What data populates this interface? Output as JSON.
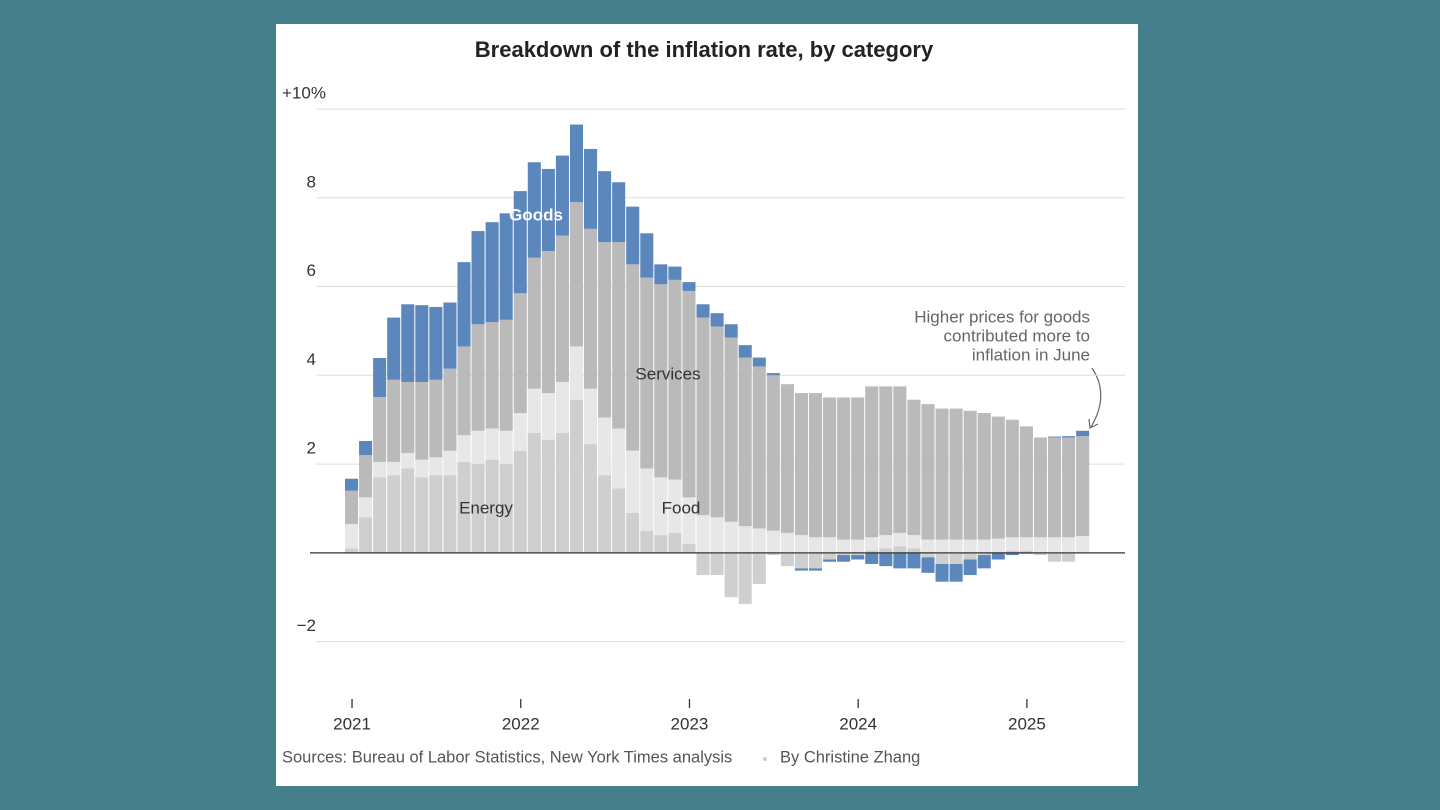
{
  "chart_data": {
    "type": "stacked-bar",
    "title": "Breakdown of the inflation rate, by category",
    "categories": [
      "2021",
      null,
      null,
      null,
      null,
      null,
      null,
      null,
      null,
      null,
      null,
      null,
      "2022",
      null,
      null,
      null,
      null,
      null,
      null,
      null,
      null,
      null,
      null,
      null,
      "2023",
      null,
      null,
      null,
      null,
      null,
      null,
      null,
      null,
      null,
      null,
      null,
      "2024",
      null,
      null,
      null,
      null,
      null,
      null,
      null,
      null,
      null,
      null,
      null,
      "2025",
      null,
      null,
      null,
      null
    ],
    "series": [
      {
        "name": "Energy",
        "color": "#cfcfcf",
        "values": [
          0.1,
          0.8,
          1.7,
          1.75,
          1.9,
          1.7,
          1.75,
          1.75,
          2.05,
          2.0,
          2.1,
          2.0,
          2.3,
          2.7,
          2.55,
          2.7,
          3.45,
          2.45,
          1.75,
          1.45,
          0.9,
          0.5,
          0.4,
          0.45,
          0.2,
          -0.5,
          -0.5,
          -1.0,
          -1.15,
          -0.7,
          -0.05,
          -0.3,
          -0.35,
          -0.35,
          -0.15,
          -0.05,
          -0.05,
          0.05,
          0.1,
          0.15,
          0.1,
          -0.1,
          -0.25,
          -0.25,
          -0.15,
          -0.05,
          0.02,
          0.05,
          0.05,
          -0.05,
          -0.2,
          -0.2,
          0
        ]
      },
      {
        "name": "Food",
        "color": "#e7e7e7",
        "values": [
          0.55,
          0.45,
          0.35,
          0.3,
          0.35,
          0.4,
          0.4,
          0.55,
          0.6,
          0.75,
          0.7,
          0.75,
          0.85,
          1.0,
          1.05,
          1.15,
          1.2,
          1.25,
          1.3,
          1.35,
          1.4,
          1.4,
          1.3,
          1.2,
          1.05,
          0.85,
          0.8,
          0.7,
          0.6,
          0.55,
          0.5,
          0.45,
          0.4,
          0.35,
          0.35,
          0.3,
          0.3,
          0.3,
          0.3,
          0.3,
          0.3,
          0.3,
          0.3,
          0.3,
          0.3,
          0.3,
          0.3,
          0.3,
          0.3,
          0.35,
          0.35,
          0.35,
          0.38
        ]
      },
      {
        "name": "Services",
        "color": "#bababa",
        "values": [
          0.75,
          0.95,
          1.46,
          1.85,
          1.6,
          1.75,
          1.75,
          1.85,
          2.0,
          2.4,
          2.4,
          2.5,
          2.7,
          2.95,
          3.2,
          3.3,
          3.25,
          3.6,
          3.95,
          4.2,
          4.2,
          4.3,
          4.35,
          4.5,
          4.65,
          4.45,
          4.3,
          4.15,
          3.8,
          3.65,
          3.5,
          3.35,
          3.2,
          3.25,
          3.15,
          3.2,
          3.2,
          3.4,
          3.35,
          3.3,
          3.05,
          3.05,
          2.95,
          2.95,
          2.9,
          2.85,
          2.75,
          2.65,
          2.5,
          2.25,
          2.25,
          2.25,
          2.25
        ]
      },
      {
        "name": "Goods",
        "color": "#5b87bd",
        "values": [
          0.27,
          0.32,
          0.88,
          1.4,
          1.75,
          1.73,
          1.64,
          1.49,
          1.9,
          2.1,
          2.25,
          2.4,
          2.3,
          2.15,
          1.85,
          1.8,
          1.75,
          1.8,
          1.6,
          1.35,
          1.3,
          1.0,
          0.45,
          0.3,
          0.2,
          0.3,
          0.3,
          0.3,
          0.28,
          0.2,
          0.05,
          0,
          -0.05,
          -0.05,
          -0.05,
          -0.15,
          -0.1,
          -0.25,
          -0.3,
          -0.35,
          -0.35,
          -0.35,
          -0.4,
          -0.4,
          -0.35,
          -0.3,
          -0.15,
          -0.05,
          -0.02,
          0,
          0.02,
          0.03,
          0.12
        ]
      }
    ],
    "ylim": [
      -3,
      10
    ],
    "yticks": [
      {
        "value": -2,
        "label": "−2"
      },
      2,
      4,
      6,
      8,
      {
        "value": 10,
        "label": "+10%"
      }
    ],
    "grid": true,
    "annotation": [
      "Higher prices for goods",
      "contributed more to",
      "inflation in June"
    ],
    "source": "Sources: Bureau of Labor Statistics, New York Times analysis",
    "byline": "By Christine Zhang"
  }
}
